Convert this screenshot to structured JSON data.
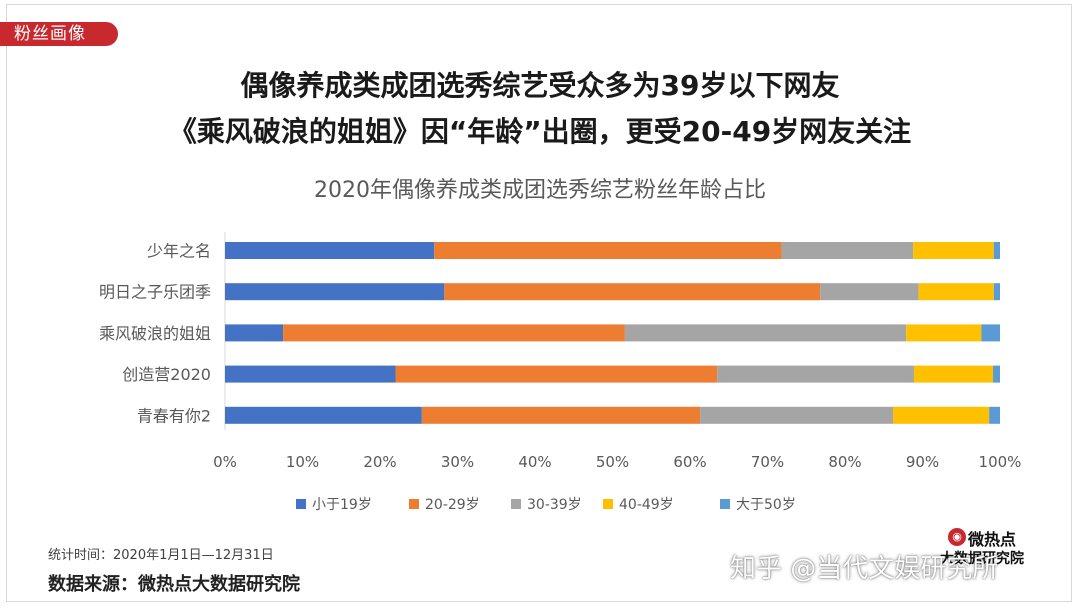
{
  "section_tag": "粉丝画像",
  "headline": {
    "line1": "偶像养成类成团选秀综艺受众多为39岁以下网友",
    "line2": "《乘风破浪的姐姐》因“年龄”出圈，更受20-49岁网友关注"
  },
  "footnote": "统计时间：2020年1月1日—12月31日",
  "source": "数据来源：微热点大数据研究院",
  "logo": {
    "name": "微热点",
    "sub": "大数据研究院",
    "icon": "weibo-eye-icon"
  },
  "watermark": "知乎 @当代文娱研究所",
  "colors": {
    "tag": "#c8292f"
  },
  "chart_data": {
    "type": "bar",
    "orientation": "horizontal",
    "stacked": true,
    "title": "2020年偶像养成类成团选秀综艺粉丝年龄占比",
    "categories": [
      "少年之名",
      "明日之子乐团季",
      "乘风破浪的姐姐",
      "创造营2020",
      "青春有你2"
    ],
    "series": [
      {
        "name": "小于19岁",
        "color": "#4472c4",
        "values": [
          27,
          28.3,
          7.5,
          22,
          25.4
        ]
      },
      {
        "name": "20-29岁",
        "color": "#ed7d31",
        "values": [
          44.8,
          48.5,
          44.1,
          41.5,
          35.9
        ]
      },
      {
        "name": "30-39岁",
        "color": "#a5a5a5",
        "values": [
          17,
          12.7,
          36.3,
          25.4,
          24.9
        ]
      },
      {
        "name": "40-49岁",
        "color": "#ffc000",
        "values": [
          10.4,
          9.7,
          9.7,
          10.2,
          12.4
        ]
      },
      {
        "name": "大于50岁",
        "color": "#5b9bd5",
        "values": [
          0.8,
          0.8,
          2.4,
          0.9,
          1.4
        ]
      }
    ],
    "xlim": [
      0,
      100
    ],
    "xticks": [
      "0%",
      "10%",
      "20%",
      "30%",
      "40%",
      "50%",
      "60%",
      "70%",
      "80%",
      "90%",
      "100%"
    ],
    "grid": false,
    "legend": "bottom"
  }
}
